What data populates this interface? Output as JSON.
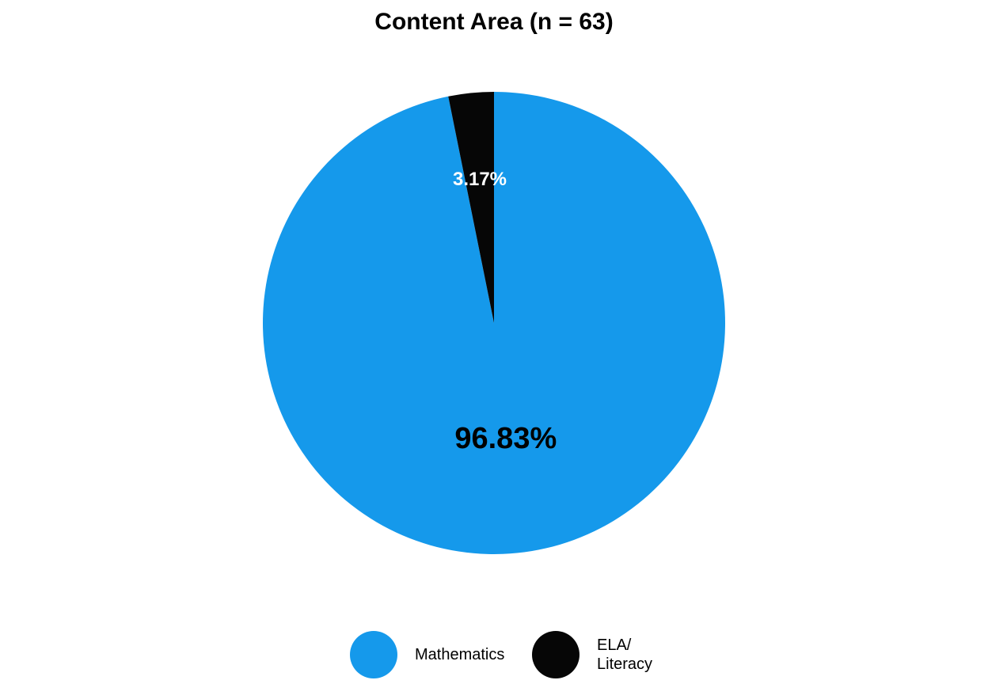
{
  "chart_data": {
    "type": "pie",
    "title": "Content Area (n = 63)",
    "series": [
      {
        "name": "Mathematics",
        "value": 96.83,
        "label": "96.83%",
        "color": "#1599EB",
        "label_color": "#000000"
      },
      {
        "name": "ELA/ Literacy",
        "value": 3.17,
        "label": "3.17%",
        "color": "#060606",
        "label_color": "#FFFFFF"
      }
    ],
    "legend_position": "bottom"
  }
}
